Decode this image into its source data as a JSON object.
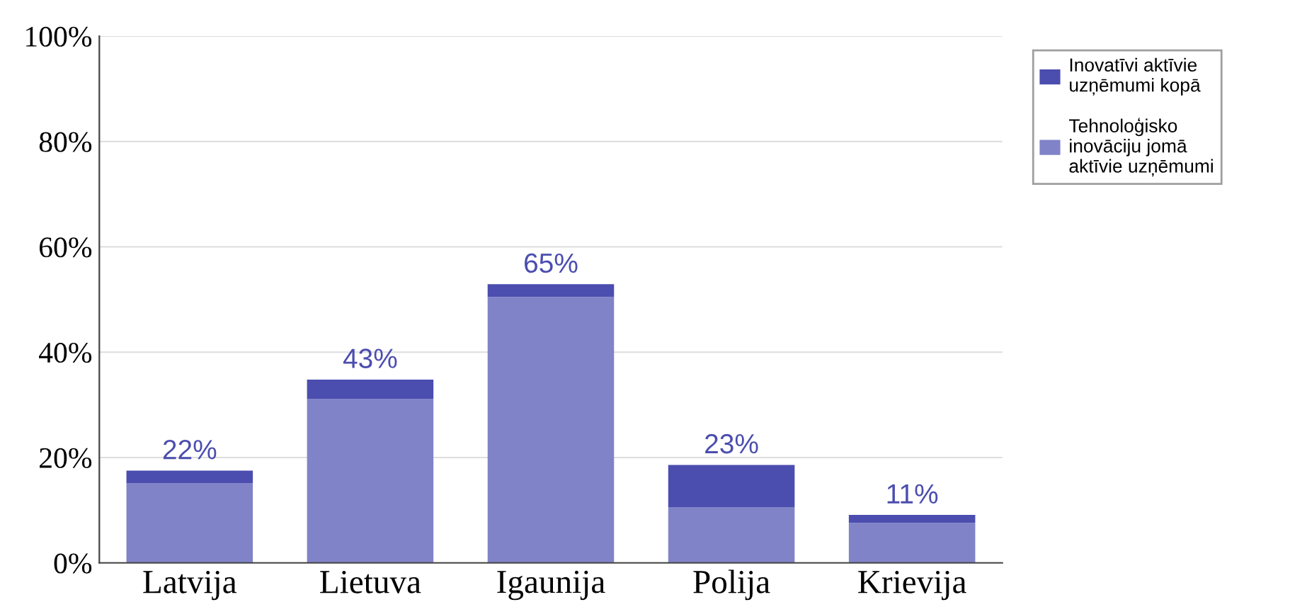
{
  "chart_data": {
    "type": "bar",
    "stacked": true,
    "categories": [
      "Latvija",
      "Lietuva",
      "Igaunija",
      "Polija",
      "Krievija"
    ],
    "series": [
      {
        "name": "Tehnoloģisko\ninovāciju jomā\naktīvie uzņēmumi",
        "color": "#8083c7",
        "values": [
          15.1,
          31.1,
          50.5,
          10.6,
          7.6
        ]
      },
      {
        "name": "Inovatīvi aktīvie\nuzņēmumi kopā",
        "color": "#4b4daf",
        "values": [
          2.4,
          3.7,
          2.4,
          8.0,
          1.5
        ]
      }
    ],
    "annotations": [
      {
        "text": "22%",
        "x": "Latvija",
        "y": 17.5
      },
      {
        "text": "43%",
        "x": "Lietuva",
        "y": 34.8
      },
      {
        "text": "65%",
        "x": "Igaunija",
        "y": 52.9
      },
      {
        "text": "23%",
        "x": "Polija",
        "y": 18.6
      },
      {
        "text": "11%",
        "x": "Krievija",
        "y": 9.1
      }
    ],
    "ylim": [
      0,
      100
    ],
    "yticks": [
      {
        "value": 0,
        "label": "0%"
      },
      {
        "value": 20,
        "label": "20%"
      },
      {
        "value": 40,
        "label": "40%"
      },
      {
        "value": 60,
        "label": "60%"
      },
      {
        "value": 80,
        "label": "80%"
      },
      {
        "value": 100,
        "label": "100%"
      }
    ],
    "grid": "y",
    "legend": "right"
  }
}
